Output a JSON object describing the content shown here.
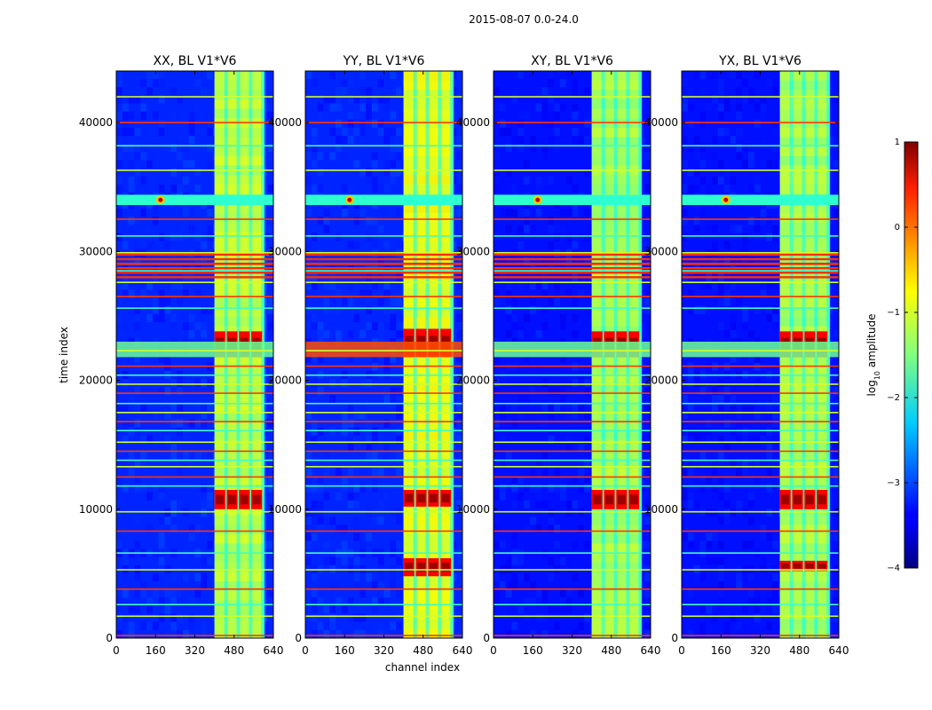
{
  "figure_title": "2015-08-07 0.0-24.0",
  "chart_data": {
    "type": "heatmap",
    "xlabel": "channel index",
    "ylabel": "time index",
    "xlim": [
      0,
      640
    ],
    "ylim": [
      0,
      44000
    ],
    "xticks": [
      0,
      160,
      320,
      480,
      640
    ],
    "yticks": [
      0,
      10000,
      20000,
      30000,
      40000
    ],
    "colormap": "jet",
    "colorbar": {
      "label": "log10 amplitude",
      "range": [
        -4,
        1
      ],
      "ticks": [
        1,
        0,
        -1,
        -2,
        -3,
        -4
      ],
      "tick_labels": [
        "1",
        "0",
        "−1",
        "−2",
        "−3",
        "−4"
      ]
    },
    "panels": [
      {
        "title": "XX, BL V1*V6",
        "background_log_amp": -3.2,
        "band_channels": [
          400,
          600
        ],
        "band_log_amp": -1.2,
        "strong_time_ranges": [
          [
            21800,
            23800
          ],
          [
            10000,
            11500
          ]
        ]
      },
      {
        "title": "YY, BL V1*V6",
        "background_log_amp": -3.2,
        "band_channels": [
          400,
          600
        ],
        "band_log_amp": -1.0,
        "strong_time_ranges": [
          [
            21800,
            24000
          ],
          [
            10200,
            11500
          ],
          [
            4800,
            6200
          ]
        ]
      },
      {
        "title": "XY, BL V1*V6",
        "background_log_amp": -3.3,
        "band_channels": [
          400,
          600
        ],
        "band_log_amp": -1.3,
        "strong_time_ranges": [
          [
            21800,
            23800
          ],
          [
            10000,
            11500
          ]
        ]
      },
      {
        "title": "YX, BL V1*V6",
        "background_log_amp": -3.3,
        "band_channels": [
          400,
          600
        ],
        "band_log_amp": -1.3,
        "strong_time_ranges": [
          [
            21800,
            23800
          ],
          [
            10000,
            11500
          ],
          [
            5200,
            6000
          ]
        ]
      }
    ],
    "notable_features": {
      "hot_spot_channel": 180,
      "hot_spot_time": 34000,
      "flagged_time_rows": [
        200,
        1700,
        2600,
        3800,
        5300,
        6600,
        8300,
        9800,
        11800,
        12500,
        13300,
        13800,
        14500,
        15200,
        16100,
        16800,
        17500,
        18200,
        19000,
        19700,
        20400,
        21100,
        22300,
        25600,
        26500,
        27600,
        28500,
        29000,
        29900,
        31200,
        32500,
        36300,
        38200,
        40000,
        42000
      ]
    }
  }
}
